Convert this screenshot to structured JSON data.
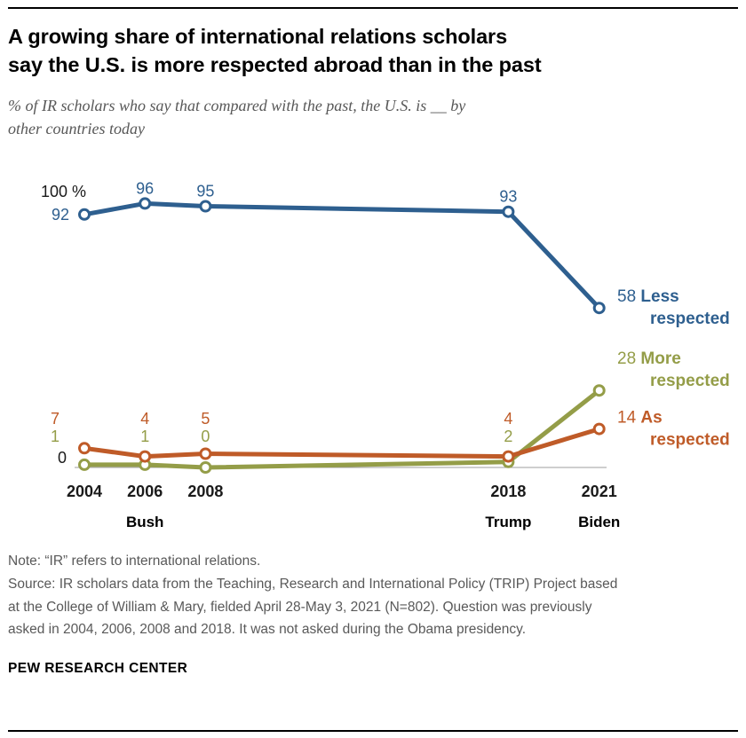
{
  "header": {
    "title_lines": [
      "A growing share of international relations scholars",
      "say the U.S. is more respected abroad than in the past"
    ],
    "subtitle_lines": [
      "% of IR scholars who say that compared with the past, the U.S. is __ by",
      "other countries today"
    ]
  },
  "chart_data": {
    "type": "line",
    "x": [
      2004,
      2006,
      2008,
      2018,
      2021
    ],
    "x_tick_labels": [
      "2004",
      "2006",
      "2008",
      "2018",
      "2021"
    ],
    "president_annotations": [
      {
        "year": 2006,
        "label": "Bush"
      },
      {
        "year": 2018,
        "label": "Trump"
      },
      {
        "year": 2021,
        "label": "Biden"
      }
    ],
    "ylim": [
      0,
      100
    ],
    "y_top_label": "100 %",
    "y_zero_label": "0",
    "axis_color": "#9c9c9c",
    "series": [
      {
        "name": "Less respected",
        "color": "#2e5f8f",
        "values": [
          92,
          96,
          95,
          93,
          58
        ],
        "end_label_value": "58",
        "end_label_name": "Less respected",
        "placements": [
          "left",
          "above",
          "above",
          "above",
          "end"
        ]
      },
      {
        "name": "More respected",
        "color": "#949d48",
        "values": [
          1,
          1,
          0,
          2,
          28
        ],
        "end_label_value": "28",
        "end_label_name": "More respected",
        "placements": [
          "left",
          "row",
          "row",
          "row",
          "end"
        ]
      },
      {
        "name": "As respected",
        "color": "#bf5b28",
        "values": [
          7,
          4,
          5,
          4,
          14
        ],
        "end_label_value": "14",
        "end_label_name": "As respected",
        "placements": [
          "left",
          "row",
          "row",
          "row",
          "end"
        ]
      }
    ]
  },
  "footer": {
    "note": "Note: “IR” refers to international relations.",
    "source": "Source: IR scholars data from the Teaching, Research and International Policy (TRIP) Project based at the College of William & Mary, fielded April 28-May 3, 2021 (N=802). Question was previously asked in 2004, 2006, 2008 and 2018. It was not asked during the Obama presidency.",
    "brand": "PEW RESEARCH CENTER"
  }
}
